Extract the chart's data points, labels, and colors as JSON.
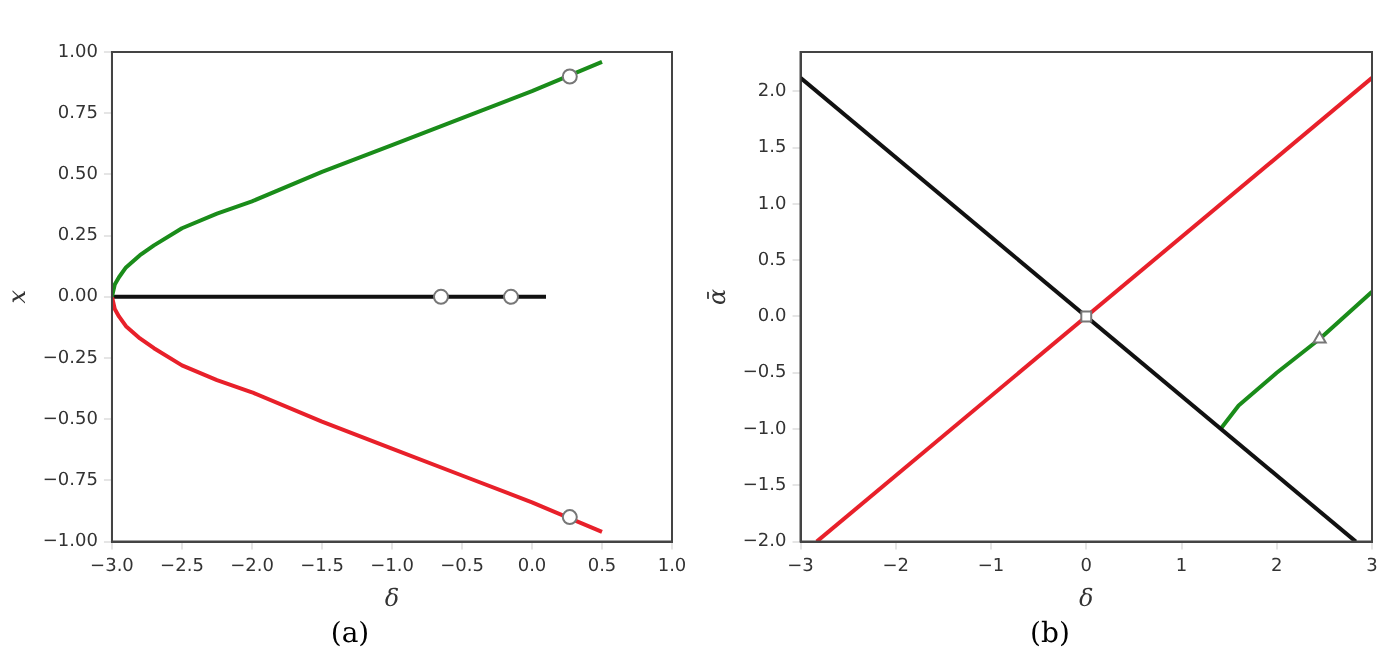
{
  "chart_data": [
    {
      "type": "line",
      "xlabel": "δ",
      "ylabel": "x",
      "annotations": [
        "(a)"
      ],
      "xlim": [
        -3,
        1
      ],
      "ylim": [
        -1,
        1
      ],
      "xticks": [
        {
          "value": -3,
          "label": "−3.0"
        },
        {
          "value": -2.5,
          "label": "−2.5"
        },
        {
          "value": -2,
          "label": "−2.0"
        },
        {
          "value": -1.5,
          "label": "−1.5"
        },
        {
          "value": -1,
          "label": "−1.0"
        },
        {
          "value": -0.5,
          "label": "−0.5"
        },
        {
          "value": 0,
          "label": "0.0"
        },
        {
          "value": 0.5,
          "label": "0.5"
        },
        {
          "value": 1,
          "label": "1.0"
        }
      ],
      "yticks": [
        {
          "value": -1,
          "label": "−1.00"
        },
        {
          "value": -0.75,
          "label": "−0.75"
        },
        {
          "value": -0.5,
          "label": "−0.50"
        },
        {
          "value": -0.25,
          "label": "−0.25"
        },
        {
          "value": 0,
          "label": "0.00"
        },
        {
          "value": 0.25,
          "label": "0.25"
        },
        {
          "value": 0.5,
          "label": "0.50"
        },
        {
          "value": 0.75,
          "label": "0.75"
        },
        {
          "value": 1,
          "label": "1.00"
        }
      ],
      "grid": false,
      "series": [
        {
          "type": "line",
          "color": "#1a8c1a",
          "x": [
            -3,
            -2.98,
            -2.95,
            -2.9,
            -2.8,
            -2.7,
            -2.5,
            -2.25,
            -2,
            -1.5,
            -1,
            -0.5,
            0,
            0.5
          ],
          "values": [
            0,
            0.05,
            0.08,
            0.12,
            0.17,
            0.21,
            0.28,
            0.34,
            0.39,
            0.51,
            0.62,
            0.73,
            0.84,
            0.96
          ]
        },
        {
          "type": "line",
          "color": "#e8202a",
          "x": [
            -3,
            -2.98,
            -2.95,
            -2.9,
            -2.8,
            -2.7,
            -2.5,
            -2.25,
            -2,
            -1.5,
            -1,
            -0.5,
            0,
            0.5
          ],
          "values": [
            0,
            -0.05,
            -0.08,
            -0.12,
            -0.17,
            -0.21,
            -0.28,
            -0.34,
            -0.39,
            -0.51,
            -0.62,
            -0.73,
            -0.84,
            -0.96
          ]
        },
        {
          "type": "line",
          "color": "#111111",
          "x": [
            -3,
            0.1
          ],
          "values": [
            0,
            0
          ]
        },
        {
          "type": "scatter",
          "marker": "circle",
          "color": "#ffffff",
          "x": [
            0.27,
            0.27,
            -0.65,
            -0.15
          ],
          "values": [
            0.9,
            -0.9,
            0,
            0
          ]
        }
      ]
    },
    {
      "type": "line",
      "xlabel": "δ",
      "ylabel": "ᾱ",
      "annotations": [
        "(b)"
      ],
      "xlim": [
        -3,
        3
      ],
      "ylim": [
        -2,
        2.35
      ],
      "xticks": [
        {
          "value": -3,
          "label": "−3"
        },
        {
          "value": -2,
          "label": "−2"
        },
        {
          "value": -1,
          "label": "−1"
        },
        0,
        1,
        2,
        3
      ],
      "yticks": [
        {
          "value": -2,
          "label": "−2.0"
        },
        {
          "value": -1.5,
          "label": "−1.5"
        },
        {
          "value": -1,
          "label": "−1.0"
        },
        {
          "value": -0.5,
          "label": "−0.5"
        },
        {
          "value": 0,
          "label": "0.0"
        },
        0.5,
        {
          "value": 1,
          "label": "1.0"
        },
        1.5,
        {
          "value": 2,
          "label": "2.0"
        }
      ],
      "grid": false,
      "series": [
        {
          "type": "line",
          "color": "#111111",
          "x": [
            -3,
            2.83
          ],
          "values": [
            2.12,
            -2
          ]
        },
        {
          "type": "line",
          "color": "#e8202a",
          "x": [
            -2.83,
            3
          ],
          "values": [
            -2,
            2.12
          ]
        },
        {
          "type": "line",
          "color": "#1a8c1a",
          "x": [
            1.41,
            1.6,
            2,
            2.45,
            3
          ],
          "values": [
            -1,
            -0.79,
            -0.5,
            -0.2,
            0.22
          ]
        },
        {
          "type": "scatter",
          "marker": "square",
          "color": "#ffffff",
          "x": [
            0
          ],
          "values": [
            0
          ]
        },
        {
          "type": "scatter",
          "marker": "triangle",
          "color": "#ffffff",
          "x": [
            2.45
          ],
          "values": [
            -0.2
          ]
        }
      ]
    }
  ]
}
